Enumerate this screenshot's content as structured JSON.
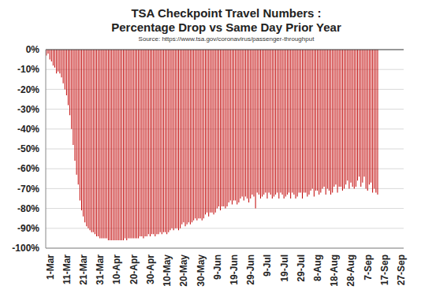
{
  "chart_data": {
    "type": "bar",
    "title": "TSA Checkpoint Travel Numbers :",
    "subtitle": "Percentage Drop vs Same Day Prior Year",
    "annotations": [
      "Source: https://www.tsa.gov/coronavirus/passenger-throughput"
    ],
    "color": "#c00000",
    "grid": true,
    "ylim": [
      -100,
      0
    ],
    "yticks": [
      {
        "value": -100,
        "label": "-100%"
      },
      {
        "value": -90,
        "label": "-90%"
      },
      {
        "value": -80,
        "label": "-80%"
      },
      {
        "value": -70,
        "label": "-70%"
      },
      {
        "value": -60,
        "label": "-60%"
      },
      {
        "value": -50,
        "label": "-50%"
      },
      {
        "value": -40,
        "label": "-40%"
      },
      {
        "value": -30,
        "label": "-30%"
      },
      {
        "value": -20,
        "label": "-20%"
      },
      {
        "value": -10,
        "label": "-10%"
      },
      {
        "value": 0,
        "label": "0%"
      }
    ],
    "categories": [
      "1-Mar",
      null,
      null,
      null,
      null,
      null,
      null,
      null,
      null,
      null,
      "11-Mar",
      null,
      null,
      null,
      null,
      null,
      null,
      null,
      null,
      null,
      "21-Mar",
      null,
      null,
      null,
      null,
      null,
      null,
      null,
      null,
      null,
      "31-Mar",
      null,
      null,
      null,
      null,
      null,
      null,
      null,
      null,
      null,
      "10-Apr",
      null,
      null,
      null,
      null,
      null,
      null,
      null,
      null,
      null,
      "20-Apr",
      null,
      null,
      null,
      null,
      null,
      null,
      null,
      null,
      null,
      "30-Apr",
      null,
      null,
      null,
      null,
      null,
      null,
      null,
      null,
      null,
      "10-May",
      null,
      null,
      null,
      null,
      null,
      null,
      null,
      null,
      null,
      "20-May",
      null,
      null,
      null,
      null,
      null,
      null,
      null,
      null,
      null,
      "30-May",
      null,
      null,
      null,
      null,
      null,
      null,
      null,
      null,
      null,
      "9-Jun",
      null,
      null,
      null,
      null,
      null,
      null,
      null,
      null,
      null,
      "19-Jun",
      null,
      null,
      null,
      null,
      null,
      null,
      null,
      null,
      null,
      "29-Jun",
      null,
      null,
      null,
      null,
      null,
      null,
      null,
      null,
      null,
      "9-Jul",
      null,
      null,
      null,
      null,
      null,
      null,
      null,
      null,
      null,
      "19-Jul",
      null,
      null,
      null,
      null,
      null,
      null,
      null,
      null,
      null,
      "29-Jul",
      null,
      null,
      null,
      null,
      null,
      null,
      null,
      null,
      null,
      "8-Aug",
      null,
      null,
      null,
      null,
      null,
      null,
      null,
      null,
      null,
      "18-Aug",
      null,
      null,
      null,
      null,
      null,
      null,
      null,
      null,
      null,
      "28-Aug",
      null,
      null,
      null,
      null,
      null,
      null,
      null,
      null,
      null,
      "7-Sep",
      null,
      null,
      null,
      null,
      null,
      null,
      null,
      null,
      null,
      "17-Sep",
      null,
      null,
      null,
      null,
      null,
      null,
      null,
      null,
      null,
      "27-Sep",
      null,
      null,
      null
    ],
    "values": [
      -3,
      -2,
      -5,
      -6,
      -8,
      -9,
      -12,
      -11,
      -12,
      -14,
      -17,
      -20,
      -23,
      -28,
      -33,
      -40,
      -48,
      -56,
      -63,
      -68,
      -76,
      -81,
      -84,
      -87,
      -89,
      -90,
      -91,
      -92,
      -92,
      -93,
      -94,
      -94,
      -95,
      -95,
      -95,
      -95,
      -95,
      -96,
      -96,
      -96,
      -96,
      -96,
      -96,
      -96,
      -96,
      -96,
      -96,
      -95,
      -96,
      -95,
      -95,
      -95,
      -95,
      -95,
      -95,
      -95,
      -94,
      -94,
      -95,
      -94,
      -94,
      -93,
      -94,
      -93,
      -93,
      -94,
      -93,
      -93,
      -92,
      -93,
      -92,
      -92,
      -93,
      -92,
      -91,
      -90,
      -91,
      -90,
      -90,
      -91,
      -90,
      -88,
      -87,
      -89,
      -88,
      -87,
      -88,
      -87,
      -86,
      -85,
      -86,
      -85,
      -85,
      -86,
      -85,
      -83,
      -82,
      -84,
      -82,
      -82,
      -83,
      -82,
      -80,
      -79,
      -81,
      -79,
      -79,
      -80,
      -79,
      -77,
      -76,
      -78,
      -76,
      -76,
      -78,
      -77,
      -75,
      -74,
      -76,
      -74,
      -75,
      -77,
      -75,
      -73,
      -74,
      -80,
      -72,
      -73,
      -75,
      -74,
      -73,
      -72,
      -75,
      -72,
      -73,
      -75,
      -74,
      -73,
      -72,
      -75,
      -72,
      -73,
      -75,
      -74,
      -73,
      -72,
      -75,
      -72,
      -73,
      -75,
      -74,
      -72,
      -72,
      -75,
      -72,
      -72,
      -74,
      -73,
      -71,
      -70,
      -74,
      -71,
      -71,
      -73,
      -72,
      -70,
      -69,
      -73,
      -70,
      -71,
      -73,
      -72,
      -69,
      -68,
      -72,
      -69,
      -69,
      -71,
      -70,
      -68,
      -66,
      -70,
      -67,
      -69,
      -70,
      -69,
      -66,
      -64,
      -69,
      -67,
      -64,
      -70,
      -71,
      -68,
      -67,
      -72,
      -70,
      -72,
      -73,
      null,
      null,
      null,
      null,
      null,
      null,
      null,
      null,
      null,
      null,
      null,
      null,
      null,
      null,
      null
    ]
  }
}
